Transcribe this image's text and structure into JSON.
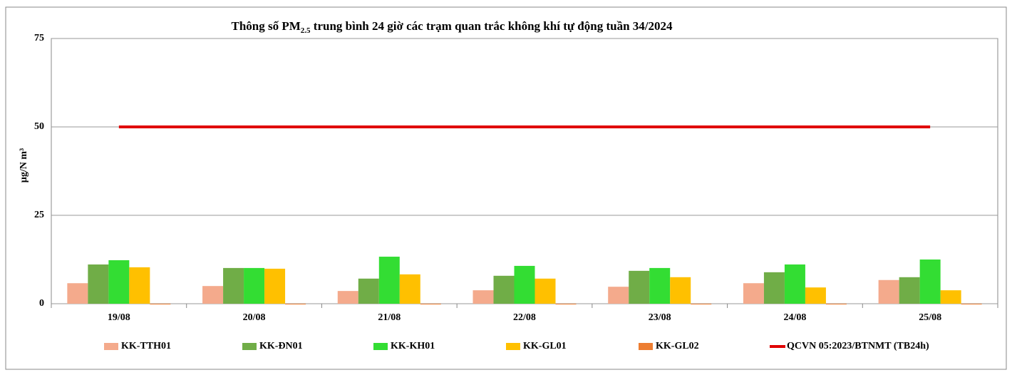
{
  "chart_data": {
    "type": "bar",
    "title": [
      "Thông số PM",
      "2.5",
      " trung bình 24 giờ các trạm quan trắc không khí tự động tuần 34/2024"
    ],
    "ylabel": "µg/N m³",
    "categories": [
      "19/08",
      "20/08",
      "21/08",
      "22/08",
      "23/08",
      "24/08",
      "25/08"
    ],
    "series": [
      {
        "name": "KK-TTH01",
        "color": "#f4aa8c",
        "values": [
          5.8,
          5.0,
          3.6,
          3.8,
          4.8,
          5.8,
          6.7
        ]
      },
      {
        "name": "KK-ĐN01",
        "color": "#70ad47",
        "values": [
          11.1,
          10.1,
          7.1,
          7.9,
          9.3,
          8.9,
          7.5
        ]
      },
      {
        "name": "KK-KH01",
        "color": "#33dd33",
        "values": [
          12.3,
          10.1,
          13.3,
          10.7,
          10.1,
          11.1,
          12.5
        ]
      },
      {
        "name": "KK-GL01",
        "color": "#ffc000",
        "values": [
          10.3,
          9.9,
          8.3,
          7.1,
          7.5,
          4.6,
          3.8
        ]
      },
      {
        "name": "KK-GL02",
        "color": "#ed7d31",
        "values": [
          0,
          0,
          0,
          0,
          0,
          0,
          0
        ]
      },
      {
        "name": "QCVN 05:2023/BTNMT (TB24h)",
        "color": "#e00000",
        "type": "line",
        "values": [
          50,
          50,
          50,
          50,
          50,
          50,
          50
        ]
      }
    ],
    "ylim": [
      0,
      75
    ],
    "yticks": [
      0,
      25,
      50,
      75
    ],
    "grid": true,
    "legend": "bottom"
  }
}
